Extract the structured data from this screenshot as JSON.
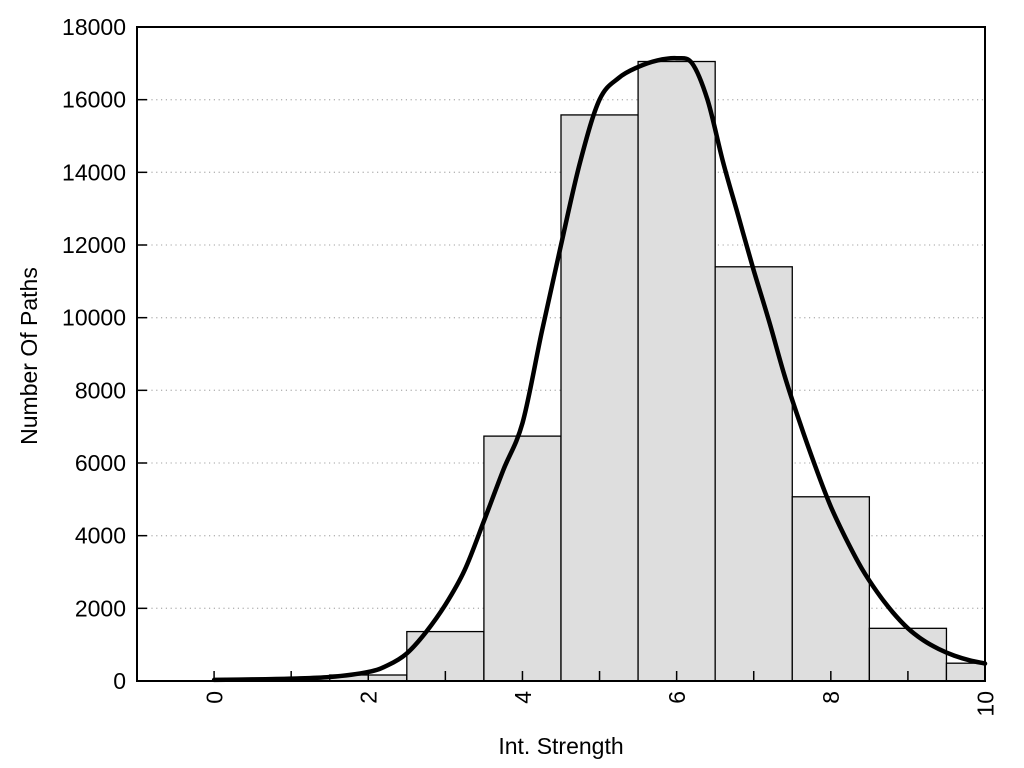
{
  "chart_data": {
    "type": "bar",
    "subtype": "histogram_with_density_curve",
    "title": "",
    "xlabel": "Int. Strength",
    "ylabel": "Number Of Paths",
    "xlim": [
      -1,
      10
    ],
    "ylim": [
      0,
      18000
    ],
    "grid": "horizontal-dotted",
    "legend": "none",
    "bins": {
      "width": 1,
      "centers": [
        2,
        3,
        4,
        5,
        6,
        7,
        8,
        9,
        10
      ],
      "counts": [
        165,
        1360,
        6740,
        15580,
        17050,
        11400,
        5070,
        1450,
        490
      ],
      "note": "last bin clipped at x=10 plot edge"
    },
    "density_curve": [
      [
        0,
        30
      ],
      [
        0.5,
        45
      ],
      [
        1,
        65
      ],
      [
        1.5,
        110
      ],
      [
        2,
        250
      ],
      [
        2.25,
        430
      ],
      [
        2.5,
        760
      ],
      [
        2.75,
        1350
      ],
      [
        3,
        2100
      ],
      [
        3.25,
        3050
      ],
      [
        3.5,
        4400
      ],
      [
        3.75,
        5800
      ],
      [
        4,
        7100
      ],
      [
        4.25,
        9600
      ],
      [
        4.5,
        12000
      ],
      [
        4.75,
        14300
      ],
      [
        5,
        16000
      ],
      [
        5.25,
        16600
      ],
      [
        5.5,
        16900
      ],
      [
        5.75,
        17080
      ],
      [
        6,
        17140
      ],
      [
        6.2,
        17000
      ],
      [
        6.4,
        16000
      ],
      [
        6.6,
        14300
      ],
      [
        6.8,
        12800
      ],
      [
        7,
        11300
      ],
      [
        7.2,
        9900
      ],
      [
        7.4,
        8400
      ],
      [
        7.6,
        7100
      ],
      [
        7.8,
        5900
      ],
      [
        8,
        4800
      ],
      [
        8.2,
        3900
      ],
      [
        8.4,
        3100
      ],
      [
        8.6,
        2450
      ],
      [
        8.8,
        1900
      ],
      [
        9,
        1450
      ],
      [
        9.2,
        1120
      ],
      [
        9.4,
        880
      ],
      [
        9.6,
        700
      ],
      [
        9.8,
        570
      ],
      [
        10,
        480
      ]
    ],
    "x_ticks": {
      "values": [
        0,
        1,
        2,
        3,
        4,
        5,
        6,
        7,
        8,
        9,
        10
      ],
      "labeled_values": [
        0,
        2,
        4,
        6,
        8,
        10
      ],
      "labels": [
        "0",
        "2",
        "4",
        "6",
        "8",
        "10"
      ],
      "label_rotation_deg": -90
    },
    "y_ticks": {
      "values": [
        0,
        2000,
        4000,
        6000,
        8000,
        10000,
        12000,
        14000,
        16000,
        18000
      ],
      "labels": [
        "0",
        "2000",
        "4000",
        "6000",
        "8000",
        "10000",
        "12000",
        "14000",
        "16000",
        "18000"
      ]
    },
    "colors": {
      "background": "#ffffff",
      "bar_fill": "#dedede",
      "bar_border": "#000000",
      "curve": "#000000",
      "gridline": "#b4b4b4",
      "frame": "#000000",
      "text": "#000000"
    }
  }
}
